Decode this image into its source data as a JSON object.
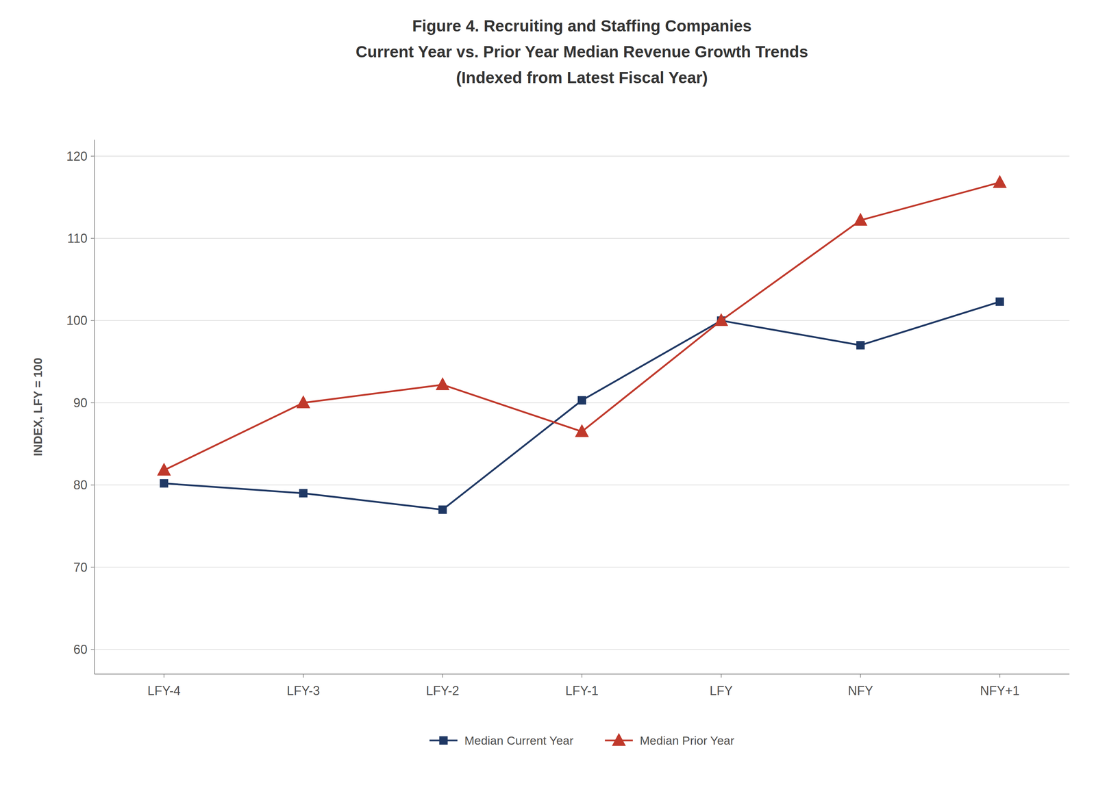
{
  "chart_data": {
    "type": "line",
    "title": [
      "Figure 4. Recruiting and Staffing Companies",
      "Current Year vs. Prior Year Median Revenue Growth Trends",
      "(Indexed from Latest Fiscal Year)"
    ],
    "ylabel": "INDEX, LFY = 100",
    "categories": [
      "LFY-4",
      "LFY-3",
      "LFY-2",
      "LFY-1",
      "LFY",
      "NFY",
      "NFY+1"
    ],
    "series": [
      {
        "name": "Median Current Year",
        "color": "#1F3864",
        "marker": "square",
        "values": [
          80.2,
          79.0,
          77.0,
          90.3,
          100.0,
          97.0,
          102.3
        ]
      },
      {
        "name": "Median Prior Year",
        "color": "#C0392B",
        "marker": "triangle",
        "values": [
          81.8,
          90.0,
          92.2,
          86.5,
          100.0,
          112.2,
          116.8
        ]
      }
    ],
    "ylim": [
      57,
      122
    ],
    "yticks": [
      60,
      70,
      80,
      90,
      100,
      110,
      120
    ],
    "grid": true,
    "legend": "bottom"
  }
}
